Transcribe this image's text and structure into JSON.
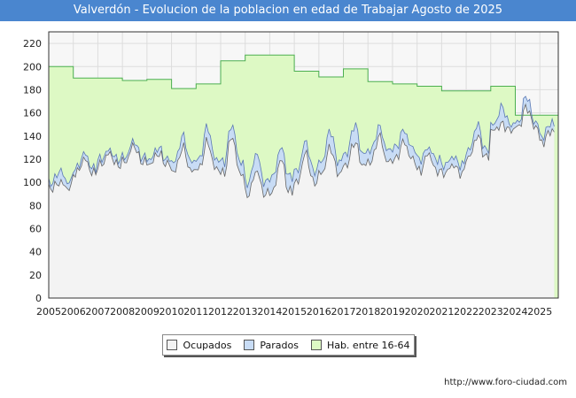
{
  "chart_data": {
    "type": "area",
    "title": "Valverdón - Evolucion de la poblacion en edad de Trabajar Agosto de 2025",
    "xlabel": "",
    "ylabel": "",
    "ylim": [
      0,
      230
    ],
    "yticks": [
      0,
      20,
      40,
      60,
      80,
      100,
      120,
      140,
      160,
      180,
      200,
      220
    ],
    "xlim": [
      2005,
      2025.75
    ],
    "xticks": [
      2005,
      2006,
      2007,
      2008,
      2009,
      2010,
      2011,
      2012,
      2013,
      2014,
      2015,
      2016,
      2017,
      2018,
      2019,
      2020,
      2021,
      2022,
      2023,
      2024,
      2025
    ],
    "grid": true,
    "legend_position": "bottom",
    "series": [
      {
        "name": "Ocupados",
        "color": "#f3f3f3",
        "line_color": "#666666",
        "annual_base": [
          95,
          108,
          115,
          118,
          116,
          110,
          112,
          108,
          90,
          92,
          100,
          108,
          115,
          118,
          120,
          110,
          108,
          122,
          145,
          148,
          135
        ],
        "annual_peak": [
          100,
          120,
          125,
          132,
          125,
          130,
          135,
          140,
          110,
          120,
          125,
          130,
          135,
          140,
          135,
          125,
          115,
          140,
          150,
          165,
          145
        ]
      },
      {
        "name": "Parados",
        "color": "#c8dcf5",
        "line_color": "#5a78b4",
        "annual_base": [
          100,
          112,
          120,
          122,
          120,
          118,
          120,
          118,
          100,
          105,
          110,
          118,
          125,
          128,
          130,
          120,
          115,
          128,
          150,
          152,
          140
        ],
        "annual_peak": [
          110,
          125,
          128,
          136,
          130,
          140,
          148,
          150,
          125,
          130,
          135,
          145,
          150,
          148,
          145,
          130,
          122,
          150,
          165,
          175,
          152
        ]
      },
      {
        "name": "Hab. entre 16-64",
        "color": "#ddf9c4",
        "line_color": "#4caf50",
        "x_start": [
          2005,
          2006,
          2007,
          2008,
          2009,
          2010,
          2011,
          2012,
          2013,
          2014,
          2015,
          2016,
          2017,
          2018,
          2019,
          2020,
          2021,
          2022,
          2023,
          2024
        ],
        "values": [
          200,
          190,
          190,
          188,
          189,
          181,
          185,
          205,
          210,
          210,
          196,
          191,
          198,
          187,
          185,
          183,
          179,
          179,
          183,
          158
        ]
      }
    ]
  },
  "legend": {
    "items": [
      {
        "label": "Ocupados",
        "color": "#f3f3f3"
      },
      {
        "label": "Parados",
        "color": "#c8dcf5"
      },
      {
        "label": "Hab. entre 16-64",
        "color": "#ddf9c4"
      }
    ]
  },
  "footer": {
    "url": "http://www.foro-ciudad.com"
  }
}
